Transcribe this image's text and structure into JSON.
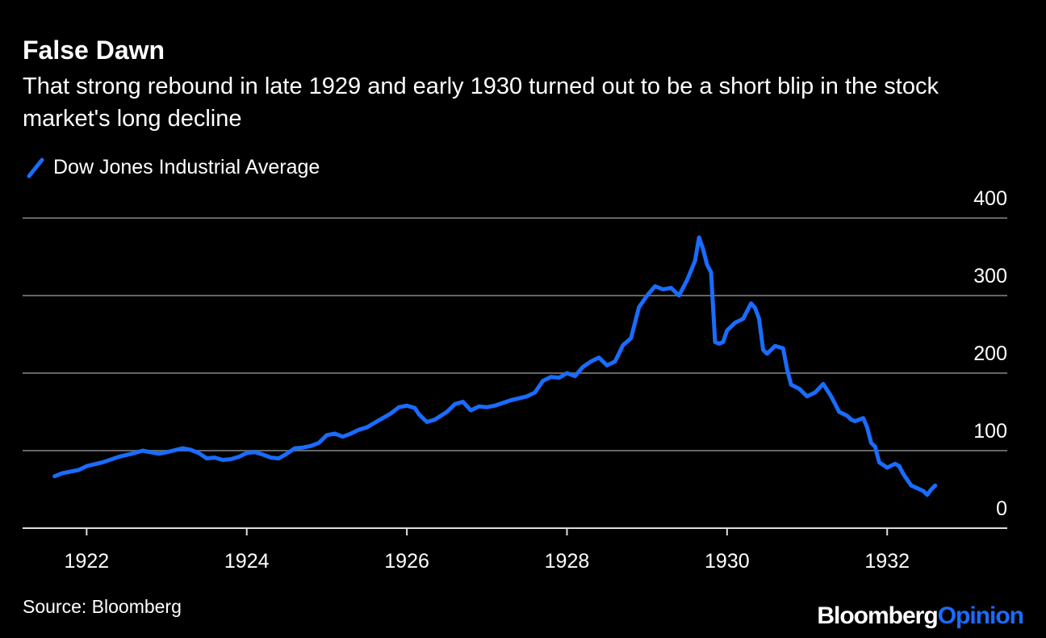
{
  "chart_data": {
    "type": "line",
    "title": "False Dawn",
    "subtitle": "That strong rebound in late 1929 and early 1930 turned out to be a short blip in the stock market's long decline",
    "source": "Source: Bloomberg",
    "brand": {
      "name": "Bloomberg",
      "suffix": "Opinion"
    },
    "x": [
      1921.6,
      1921.7,
      1921.9,
      1922.0,
      1922.2,
      1922.4,
      1922.6,
      1922.7,
      1922.8,
      1922.9,
      1923.0,
      1923.2,
      1923.3,
      1923.4,
      1923.5,
      1923.6,
      1923.7,
      1923.8,
      1923.9,
      1924.0,
      1924.1,
      1924.2,
      1924.3,
      1924.4,
      1924.5,
      1924.6,
      1924.7,
      1924.8,
      1924.9,
      1925.0,
      1925.1,
      1925.2,
      1925.3,
      1925.4,
      1925.5,
      1925.6,
      1925.7,
      1925.8,
      1925.9,
      1926.0,
      1926.1,
      1926.15,
      1926.25,
      1926.35,
      1926.5,
      1926.6,
      1926.7,
      1926.8,
      1926.9,
      1927.0,
      1927.1,
      1927.3,
      1927.5,
      1927.6,
      1927.7,
      1927.8,
      1927.9,
      1928.0,
      1928.1,
      1928.2,
      1928.3,
      1928.4,
      1928.5,
      1928.6,
      1928.7,
      1928.8,
      1928.9,
      1929.0,
      1929.1,
      1929.2,
      1929.3,
      1929.4,
      1929.5,
      1929.6,
      1929.65,
      1929.7,
      1929.75,
      1929.8,
      1929.85,
      1929.9,
      1929.95,
      1930.0,
      1930.1,
      1930.2,
      1930.3,
      1930.35,
      1930.4,
      1930.45,
      1930.5,
      1930.6,
      1930.7,
      1930.75,
      1930.8,
      1930.9,
      1931.0,
      1931.1,
      1931.2,
      1931.3,
      1931.4,
      1931.5,
      1931.55,
      1931.6,
      1931.7,
      1931.75,
      1931.8,
      1931.85,
      1931.9,
      1932.0,
      1932.1,
      1932.15,
      1932.2,
      1932.3,
      1932.45,
      1932.5,
      1932.55,
      1932.6
    ],
    "series": [
      {
        "name": "Dow Jones Industrial Average",
        "color": "#1a6cff",
        "values": [
          67,
          71,
          75,
          80,
          85,
          92,
          97,
          100,
          98,
          96,
          98,
          103,
          101,
          97,
          90,
          91,
          88,
          89,
          92,
          97,
          98,
          95,
          91,
          90,
          96,
          103,
          104,
          106,
          110,
          120,
          122,
          118,
          122,
          127,
          130,
          136,
          142,
          148,
          156,
          158,
          155,
          147,
          137,
          140,
          150,
          160,
          163,
          152,
          157,
          156,
          158,
          165,
          170,
          175,
          190,
          195,
          194,
          200,
          196,
          208,
          215,
          220,
          210,
          215,
          236,
          245,
          285,
          300,
          312,
          308,
          310,
          300,
          320,
          345,
          375,
          360,
          340,
          330,
          240,
          238,
          240,
          255,
          265,
          270,
          290,
          284,
          270,
          230,
          225,
          235,
          232,
          205,
          185,
          180,
          170,
          175,
          186,
          170,
          150,
          145,
          140,
          138,
          142,
          130,
          110,
          105,
          85,
          78,
          83,
          80,
          70,
          55,
          48,
          43,
          50,
          55
        ]
      }
    ],
    "xlim": [
      1921.2,
      1933.5
    ],
    "xticks": [
      1922,
      1924,
      1926,
      1928,
      1930,
      1932
    ],
    "ylim": [
      0,
      400
    ],
    "yticks": [
      0,
      100,
      200,
      300,
      400
    ],
    "grid": true
  }
}
